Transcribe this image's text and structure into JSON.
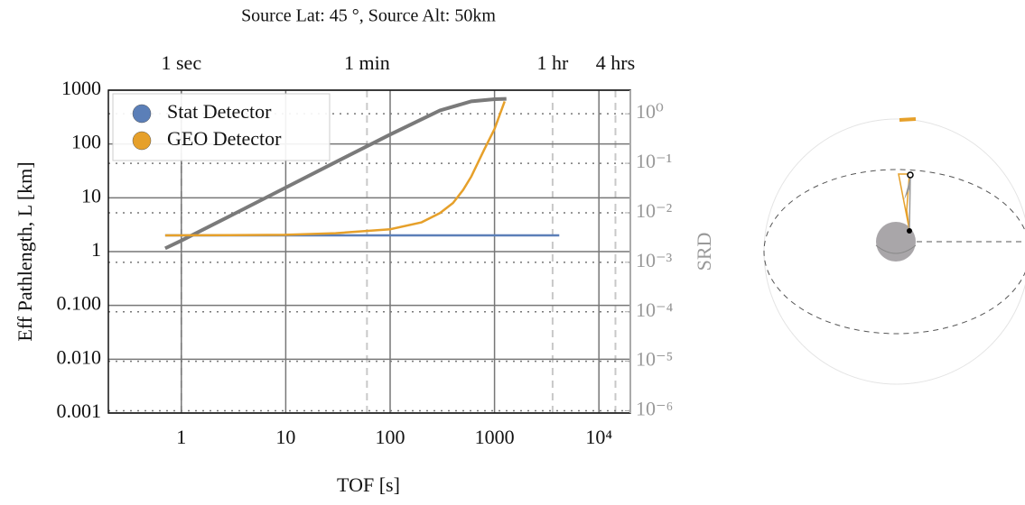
{
  "chart_data": {
    "type": "line",
    "title": "Source Lat: 45 °, Source Alt: 50km",
    "x_label": "TOF [s]",
    "y_label": "Eff Pathlength, L [km]",
    "y2_label": "SRD",
    "xscale": "log",
    "yscale": "log",
    "y2scale": "log",
    "xlim": [
      0.2,
      20000
    ],
    "ylim": [
      0.001,
      1000
    ],
    "y2lim": [
      9e-07,
      3
    ],
    "xticks": [
      1,
      10,
      100,
      1000,
      {
        "value": 10000,
        "label": "10⁴"
      }
    ],
    "yticks": [
      0.001,
      {
        "value": 0.01,
        "label": "0.010"
      },
      {
        "value": 0.1,
        "label": "0.100"
      },
      1,
      10,
      100,
      1000
    ],
    "y2ticks": [
      {
        "value": 1e-06,
        "label": "10⁻⁶"
      },
      {
        "value": 1e-05,
        "label": "10⁻⁵"
      },
      {
        "value": 0.0001,
        "label": "10⁻⁴"
      },
      {
        "value": 0.001,
        "label": "10⁻³"
      },
      {
        "value": 0.01,
        "label": "10⁻²"
      },
      {
        "value": 0.1,
        "label": "10⁻¹"
      },
      {
        "value": 1,
        "label": "10⁰"
      }
    ],
    "top_ticks": [
      {
        "value": 1,
        "label": "1 sec"
      },
      {
        "value": 60,
        "label": "1 min"
      },
      {
        "value": 3600,
        "label": "1 hr"
      },
      {
        "value": 14400,
        "label": "4 hrs"
      }
    ],
    "grid": true,
    "legend": "upper left",
    "series": [
      {
        "color": "#7a7a7a",
        "x": [
          0.7,
          1,
          3,
          10,
          30,
          100,
          300,
          600,
          1000,
          1300
        ],
        "values": [
          1.15,
          1.6,
          4.7,
          15.5,
          46,
          150,
          420,
          620,
          680,
          690
        ]
      },
      {
        "name": "Stat Detector",
        "color": "#5b7fb8",
        "x": [
          0.7,
          4170
        ],
        "values": [
          2.0,
          2.0
        ]
      },
      {
        "name": "GEO Detector",
        "color": "#e6a02a",
        "x": [
          0.7,
          10,
          30,
          100,
          200,
          300,
          400,
          500,
          600,
          800,
          1000,
          1250
        ],
        "values": [
          2.0,
          2.05,
          2.2,
          2.6,
          3.5,
          5.2,
          8,
          14,
          25,
          80,
          190,
          620
        ]
      }
    ]
  }
}
